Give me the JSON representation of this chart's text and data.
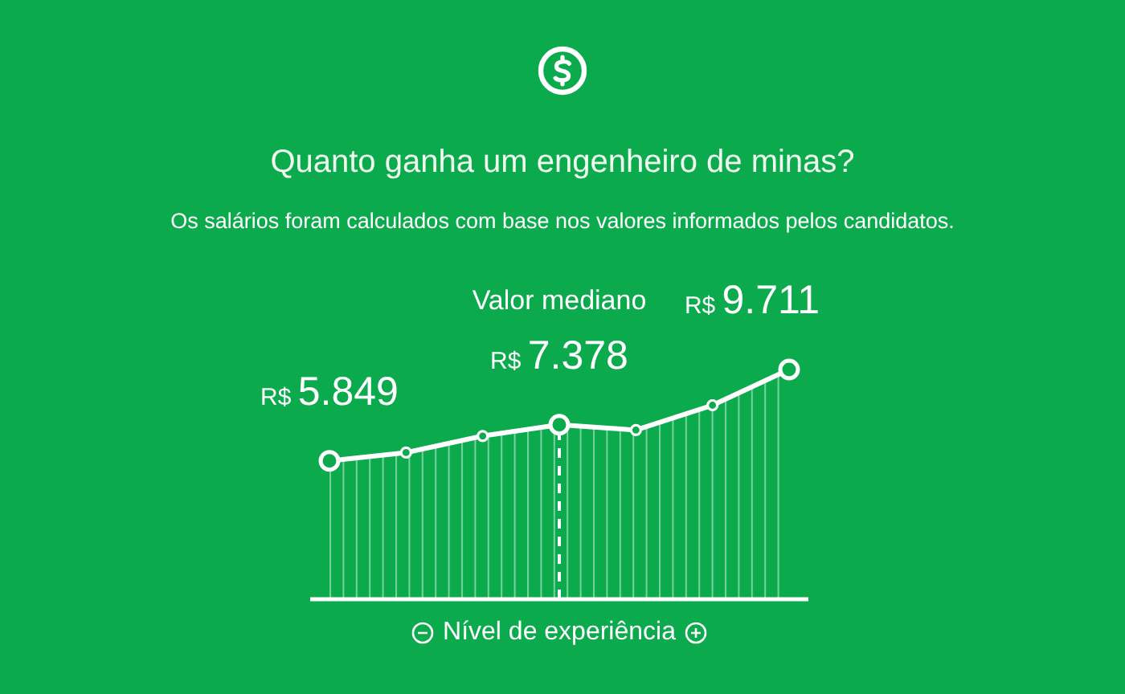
{
  "chart_data": {
    "type": "area",
    "title": "Quanto ganha um engenheiro de minas?",
    "subtitle": "Os salários foram calculados com base nos valores informados pelos candidatos.",
    "xlabel": "Nível de experiência",
    "categories": [
      null,
      null,
      null,
      null,
      null,
      null,
      null
    ],
    "tick_labels": false,
    "series": [
      {
        "color": "#ffffff",
        "values": [
          5849,
          6200,
          6900,
          7378,
          7150,
          8200,
          9711
        ],
        "value_labels": [
          "R$ 5.849",
          null,
          null,
          "R$ 7.378",
          null,
          null,
          "R$ 9.711"
        ]
      }
    ],
    "annotations": [
      "Valor mediano"
    ],
    "marker": "circle",
    "line_style": "solid"
  }
}
